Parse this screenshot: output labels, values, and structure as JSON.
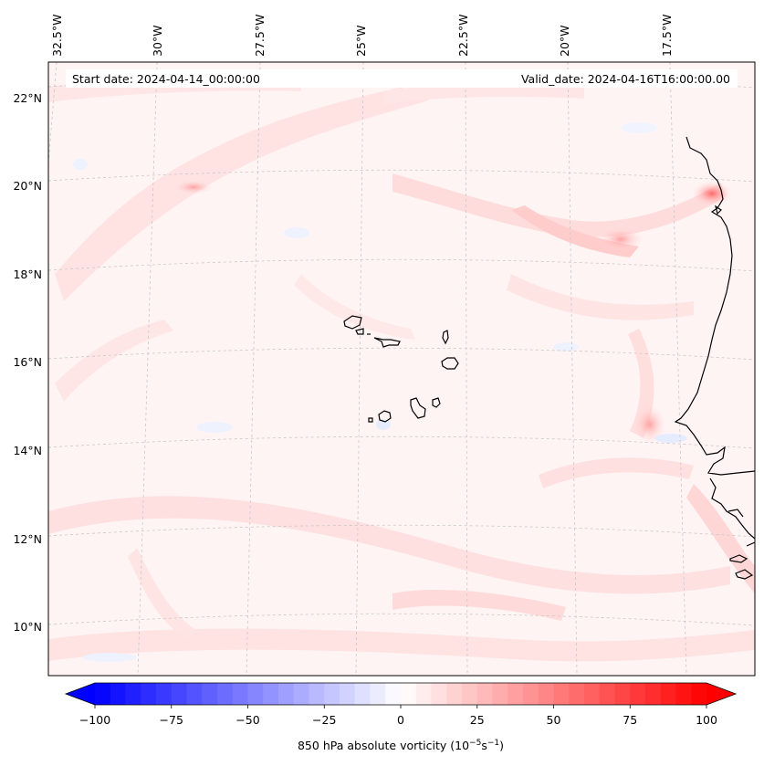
{
  "map": {
    "start_label": "Start date: 2024-04-14_00:00:00",
    "valid_label": "Valid_date: 2024-04-16T16:00:00.00",
    "lon_labels": [
      "32.5°W",
      "30°W",
      "27.5°W",
      "25°W",
      "22.5°W",
      "20°W",
      "17.5°W"
    ],
    "lat_labels": [
      "22°N",
      "20°N",
      "18°N",
      "16°N",
      "14°N",
      "12°N",
      "10°N"
    ],
    "gridlines": true,
    "field_colormap": "bwr",
    "coastline_color": "#000000"
  },
  "colorbar": {
    "tick_labels": [
      "−100",
      "−75",
      "−50",
      "−25",
      "0",
      "25",
      "50",
      "75",
      "100"
    ],
    "label_prefix": "850 hPa absolute vorticity (10",
    "label_exp1": "−5",
    "label_mid": "s",
    "label_exp2": "−1",
    "label_suffix": ")",
    "min": -100,
    "max": 100,
    "step": 5,
    "colors": {
      "negative_end": "#0000ff",
      "zero": "#ffffff",
      "positive_end": "#ff0000"
    }
  }
}
